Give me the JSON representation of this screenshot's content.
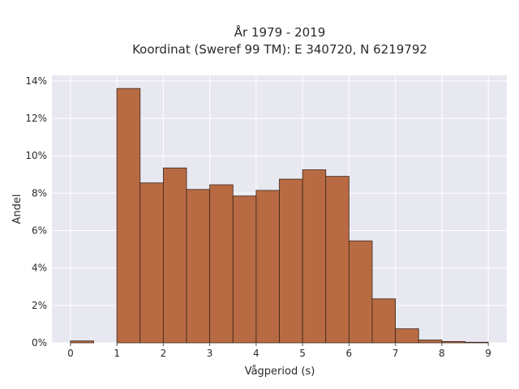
{
  "chart_data": {
    "type": "bar",
    "title_line1": "År 1979 - 2019",
    "title_line2": "Koordinat (Sweref 99 TM): E 340720, N 6219792",
    "xlabel": "Vågperiod (s)",
    "ylabel": "Andel",
    "xlim": [
      -0.4,
      9.4
    ],
    "ylim": [
      0,
      14.3
    ],
    "x_ticks": [
      0,
      1,
      2,
      3,
      4,
      5,
      6,
      7,
      8,
      9
    ],
    "x_tick_labels": [
      "0",
      "1",
      "2",
      "3",
      "4",
      "5",
      "6",
      "7",
      "8",
      "9"
    ],
    "y_ticks": [
      0,
      2,
      4,
      6,
      8,
      10,
      12,
      14
    ],
    "y_tick_labels": [
      "0%",
      "2%",
      "4%",
      "6%",
      "8%",
      "10%",
      "12%",
      "14%"
    ],
    "grid": true,
    "bin_width": 0.5,
    "bins": [
      {
        "x": 0.0,
        "value": 0.1
      },
      {
        "x": 1.0,
        "value": 13.6
      },
      {
        "x": 1.5,
        "value": 8.55
      },
      {
        "x": 2.0,
        "value": 9.35
      },
      {
        "x": 2.5,
        "value": 8.2
      },
      {
        "x": 3.0,
        "value": 8.45
      },
      {
        "x": 3.5,
        "value": 7.85
      },
      {
        "x": 4.0,
        "value": 8.15
      },
      {
        "x": 4.5,
        "value": 8.75
      },
      {
        "x": 5.0,
        "value": 9.25
      },
      {
        "x": 5.5,
        "value": 8.9
      },
      {
        "x": 6.0,
        "value": 5.45
      },
      {
        "x": 6.5,
        "value": 2.35
      },
      {
        "x": 7.0,
        "value": 0.75
      },
      {
        "x": 7.5,
        "value": 0.15
      },
      {
        "x": 8.0,
        "value": 0.07
      },
      {
        "x": 8.5,
        "value": 0.03
      }
    ],
    "colors": {
      "bar_fill": "#b86b43",
      "bar_edge": "#3a2418",
      "plot_bg": "#e8e8f1",
      "grid": "#ffffff"
    }
  }
}
